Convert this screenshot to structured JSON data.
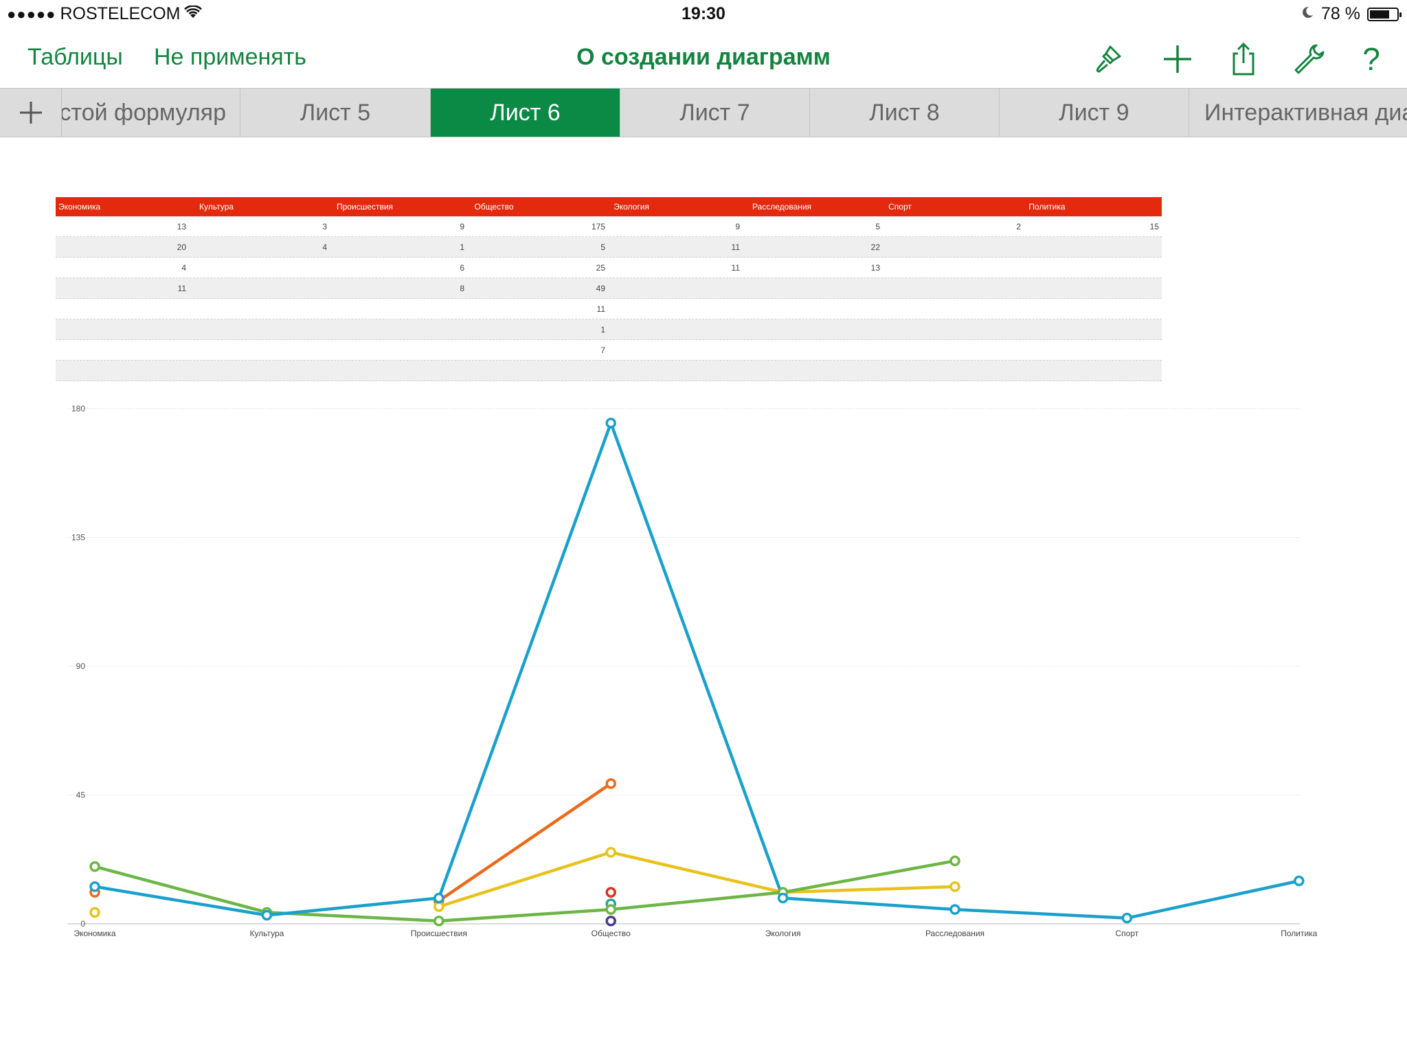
{
  "status_bar": {
    "signal": "●●●●●",
    "carrier": "ROSTELECOM",
    "time": "19:30",
    "battery_text": "78 %",
    "battery_level": 0.78
  },
  "toolbar": {
    "back_label": "Таблицы",
    "undo_label": "Не применять",
    "title": "О создании диаграмм",
    "icons": [
      "paintbrush-icon",
      "plus-icon",
      "share-icon",
      "wrench-icon",
      "help-icon"
    ],
    "help_glyph": "?"
  },
  "tabs": {
    "items": [
      {
        "label": "стой формуляр"
      },
      {
        "label": "Лист 5"
      },
      {
        "label": "Лист 6"
      },
      {
        "label": "Лист 7"
      },
      {
        "label": "Лист 8"
      },
      {
        "label": "Лист 9"
      },
      {
        "label": "Интерактивная диа"
      }
    ],
    "active_index": 2
  },
  "table": {
    "headers": [
      "Экономика",
      "Культура",
      "Происшествия",
      "Общество",
      "Экология",
      "Расследования",
      "Спорт",
      "Политика"
    ],
    "rows": [
      [
        "13",
        "3",
        "9",
        "175",
        "9",
        "5",
        "2",
        "15"
      ],
      [
        "20",
        "4",
        "1",
        "5",
        "11",
        "22",
        "",
        ""
      ],
      [
        "4",
        "",
        "6",
        "25",
        "11",
        "13",
        "",
        ""
      ],
      [
        "11",
        "",
        "8",
        "49",
        "",
        "",
        "",
        ""
      ],
      [
        "",
        "",
        "",
        "11",
        "",
        "",
        "",
        ""
      ],
      [
        "",
        "",
        "",
        "1",
        "",
        "",
        "",
        ""
      ],
      [
        "",
        "",
        "",
        "7",
        "",
        "",
        "",
        ""
      ],
      [
        "",
        "",
        "",
        "",
        "",
        "",
        "",
        ""
      ]
    ]
  },
  "chart_data": {
    "type": "line",
    "categories": [
      "Экономика",
      "Культура",
      "Происшествия",
      "Общество",
      "Экология",
      "Расследования",
      "Спорт",
      "Политика"
    ],
    "ylim": [
      0,
      180
    ],
    "yticks": [
      "0",
      "45",
      "90",
      "135",
      "180"
    ],
    "grid": true,
    "series": [
      {
        "color": "#1aa0cc",
        "values": [
          13,
          3,
          9,
          175,
          9,
          5,
          2,
          15
        ]
      },
      {
        "color": "#6bb644",
        "values": [
          20,
          4,
          1,
          5,
          11,
          22,
          null,
          null
        ]
      },
      {
        "color": "#e8c21b",
        "values": [
          4,
          null,
          6,
          25,
          11,
          13,
          null,
          null
        ]
      },
      {
        "color": "#ea6a1b",
        "values": [
          11,
          null,
          8,
          49,
          null,
          null,
          null,
          null
        ]
      },
      {
        "color": "#d9311f",
        "values": [
          null,
          null,
          null,
          11,
          null,
          null,
          null,
          null
        ]
      },
      {
        "color": "#4a3d8f",
        "values": [
          null,
          null,
          null,
          1,
          null,
          null,
          null,
          null
        ]
      },
      {
        "color": "#25a79a",
        "values": [
          null,
          null,
          null,
          7,
          null,
          null,
          null,
          null
        ]
      }
    ]
  }
}
